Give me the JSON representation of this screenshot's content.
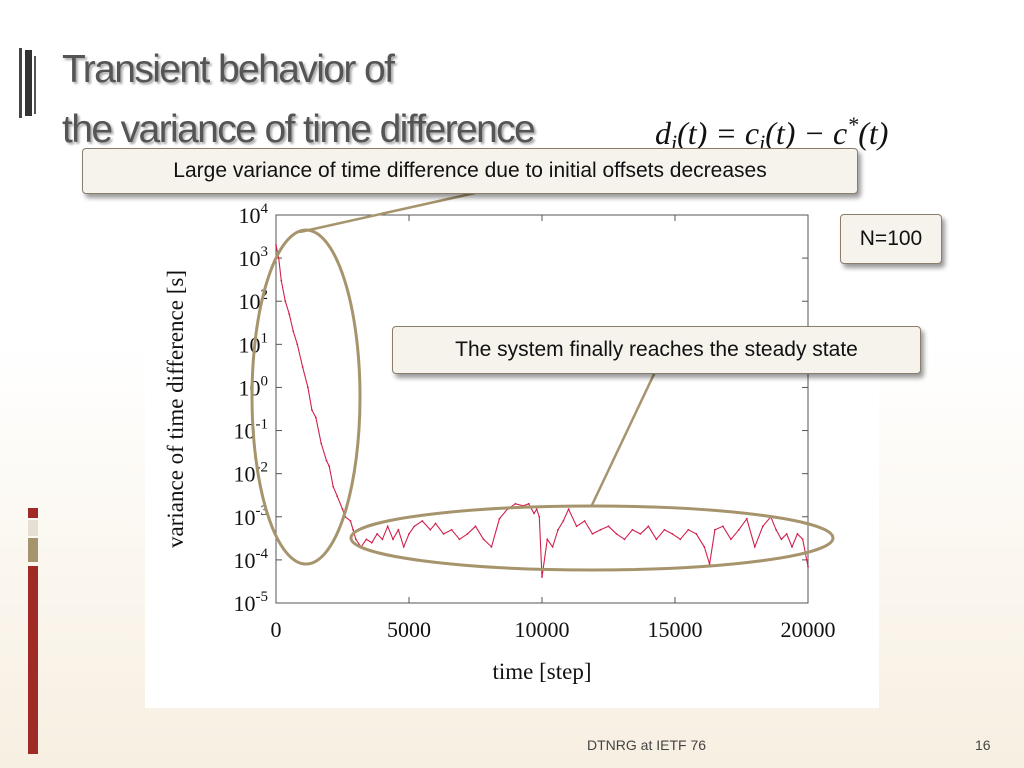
{
  "slide": {
    "title_line1": "Transient behavior of",
    "title_line2": "the variance of time difference",
    "formula": {
      "d": "d",
      "i1": "i",
      "t1": "(t) = ",
      "c": "c",
      "i2": "i",
      "t2": "(t) − ",
      "cstar": "c",
      "star": "*",
      "t3": "(t)"
    },
    "footer_text": "DTNRG at IETF 76",
    "page_number": "16",
    "colors": {
      "title": "#555555",
      "series": "#d1204c",
      "annotation": "#a6946d",
      "accent_red": "#a02a26",
      "accent_tan": "#a6946d"
    }
  },
  "callouts": {
    "large_variance": "Large variance of time difference due to initial offsets decreases",
    "steady_state": "The system finally reaches the steady state",
    "n_label": "N=100"
  },
  "chart_data": {
    "type": "line",
    "title": "",
    "xlabel": "time [step]",
    "ylabel": "variance of time difference [s]",
    "xlim": [
      0,
      20000
    ],
    "ylim": [
      1e-05,
      10000
    ],
    "yscale": "log",
    "x_ticks": [
      0,
      5000,
      10000,
      15000,
      20000
    ],
    "x_tick_labels": [
      "0",
      "5000",
      "10000",
      "15000",
      "20000"
    ],
    "y_tick_exponents": [
      4,
      3,
      2,
      1,
      0,
      -1,
      -2,
      -3,
      -4,
      -5
    ],
    "y_tick_base": "10",
    "grid": false,
    "legend": "none",
    "series": [
      {
        "x": [
          0,
          100,
          200,
          350,
          500,
          650,
          800,
          1000,
          1200,
          1350,
          1500,
          1700,
          1900,
          2000,
          2150,
          2300,
          2500,
          2600,
          2800,
          2900,
          3000,
          3200,
          3400,
          3600,
          3800,
          4000,
          4200,
          4400,
          4600,
          4800,
          5000,
          5200,
          5500,
          5800,
          6000,
          6300,
          6600,
          6900,
          7200,
          7500,
          7800,
          8100,
          8400,
          8700,
          9000,
          9300,
          9500,
          9700,
          9800,
          9900,
          10000,
          10200,
          10400,
          10600,
          10800,
          11000,
          11300,
          11600,
          11900,
          12200,
          12500,
          12800,
          13100,
          13400,
          13700,
          14000,
          14300,
          14600,
          14900,
          15200,
          15500,
          15800,
          16100,
          16300,
          16500,
          16800,
          17100,
          17400,
          17700,
          18000,
          18300,
          18600,
          18800,
          19000,
          19200,
          19400,
          19600,
          19800,
          20000
        ],
        "y": [
          2000,
          1000,
          300,
          100,
          50,
          20,
          10,
          3,
          1,
          0.3,
          0.2,
          0.05,
          0.02,
          0.015,
          0.005,
          0.003,
          0.0015,
          0.001,
          0.0008,
          0.0005,
          0.0003,
          0.0002,
          0.0003,
          0.00025,
          0.0004,
          0.0003,
          0.0006,
          0.0003,
          0.0005,
          0.0002,
          0.0004,
          0.0006,
          0.0008,
          0.0005,
          0.0007,
          0.0004,
          0.0005,
          0.0003,
          0.0004,
          0.0006,
          0.0003,
          0.0002,
          0.0009,
          0.0015,
          0.002,
          0.0018,
          0.002,
          0.0012,
          0.0015,
          0.001,
          4e-05,
          0.0003,
          0.0002,
          0.0005,
          0.0008,
          0.0015,
          0.0006,
          0.0008,
          0.0004,
          0.0005,
          0.0006,
          0.0004,
          0.0003,
          0.0005,
          0.0004,
          0.0006,
          0.0003,
          0.0005,
          0.0004,
          0.0003,
          0.0005,
          0.0004,
          0.0002,
          8e-05,
          0.0005,
          0.0006,
          0.0003,
          0.0005,
          0.0009,
          0.0002,
          0.0006,
          0.001,
          0.0005,
          0.0003,
          0.0004,
          0.0002,
          0.0004,
          0.0003,
          7e-05
        ]
      }
    ]
  }
}
